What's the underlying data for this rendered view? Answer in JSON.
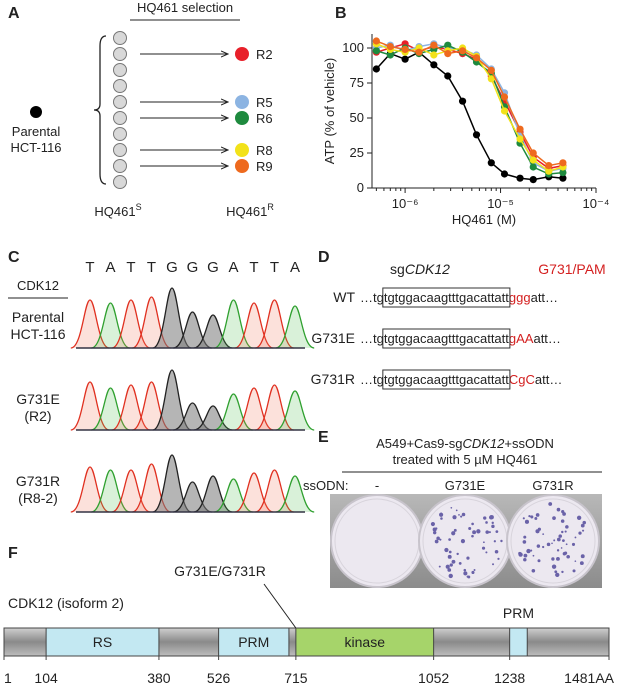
{
  "panel_a": {
    "letter": "A",
    "selection": "HQ461 selection",
    "parental": [
      "Parental",
      "HCT-116"
    ],
    "clones": [
      {
        "label": "R2",
        "row": 2,
        "color": "#e8202a"
      },
      {
        "label": "R5",
        "row": 5,
        "color": "#8cb4e2"
      },
      {
        "label": "R6",
        "row": 6,
        "color": "#1e8a3e"
      },
      {
        "label": "R8",
        "row": 8,
        "color": "#f2e21a"
      },
      {
        "label": "R9",
        "row": 9,
        "color": "#ee6a1e"
      }
    ],
    "sensitive": {
      "text": "HQ461",
      "sup": "S"
    },
    "resistant": {
      "text": "HQ461",
      "sup": "R"
    }
  },
  "chart_data": {
    "type": "scatter",
    "letter": "B",
    "ylabel": "ATP (% of vehicle)",
    "xlabel": "HQ461 (M)",
    "xlog": true,
    "xlim": [
      4.5e-07,
      0.0001
    ],
    "ylim": [
      0,
      110
    ],
    "xticks": [
      {
        "value": 1e-06,
        "label": "10⁻⁶"
      },
      {
        "value": 1e-05,
        "label": "10⁻⁵"
      },
      {
        "value": 0.0001,
        "label": "10⁻⁴"
      }
    ],
    "yticks": [
      0,
      25,
      50,
      75,
      100
    ],
    "x": [
      5e-07,
      7e-07,
      1e-06,
      1.4e-06,
      2e-06,
      2.8e-06,
      4e-06,
      5.6e-06,
      8e-06,
      1.1e-05,
      1.6e-05,
      2.2e-05,
      3.2e-05,
      4.5e-05
    ],
    "series": [
      {
        "color": "#000000",
        "values": [
          85,
          96,
          92,
          97,
          88,
          80,
          62,
          38,
          18,
          10,
          7,
          6,
          8,
          7
        ]
      },
      {
        "color": "#e8202a",
        "values": [
          97,
          100,
          103,
          98,
          101,
          99,
          96,
          92,
          80,
          62,
          40,
          22,
          14,
          16
        ]
      },
      {
        "color": "#8cb4e2",
        "values": [
          100,
          102,
          98,
          101,
          103,
          100,
          99,
          95,
          85,
          68,
          38,
          18,
          12,
          14
        ]
      },
      {
        "color": "#1e8a3e",
        "values": [
          98,
          95,
          100,
          96,
          99,
          102,
          97,
          90,
          82,
          58,
          32,
          15,
          10,
          11
        ]
      },
      {
        "color": "#f2e21a",
        "values": [
          103,
          99,
          97,
          100,
          95,
          98,
          100,
          94,
          78,
          55,
          35,
          20,
          12,
          15
        ]
      },
      {
        "color": "#ee6a1e",
        "values": [
          105,
          101,
          99,
          97,
          102,
          96,
          98,
          93,
          84,
          65,
          42,
          25,
          16,
          18
        ]
      }
    ]
  },
  "panel_c": {
    "letter": "C",
    "gene": "CDK12",
    "bases": [
      "T",
      "A",
      "T",
      "T",
      "G",
      "G",
      "G",
      "A",
      "T",
      "T",
      "A"
    ],
    "rows": [
      [
        "Parental",
        "HCT-116"
      ],
      [
        "G731E",
        "(R2)"
      ],
      [
        "G731R",
        "(R8-2)"
      ]
    ]
  },
  "panel_d": {
    "letter": "D",
    "guide": {
      "prefix": "sg",
      "gene": "CDK12"
    },
    "pam": "G731/PAM",
    "rows": [
      {
        "label": "WT",
        "seq": "…tgtgtggacaagtttgacattatt",
        "mut": "ggg",
        "tail": "att…"
      },
      {
        "label": "G731E",
        "seq": "…tgtgtggacaagtttgacattatt",
        "mut": "gAA",
        "tail": "att…"
      },
      {
        "label": "G731R",
        "seq": "…tgtgtggacaagtttgacattatt",
        "mut": "CgC",
        "tail": "att…"
      }
    ]
  },
  "panel_e": {
    "letter": "E",
    "title": [
      "A549+Cas9-sg",
      "CDK12",
      "+ssODN"
    ],
    "subtitle": "treated with 5 µM HQ461",
    "row_label": "ssODN:",
    "columns": [
      "-",
      "G731E",
      "G731R"
    ]
  },
  "panel_f": {
    "letter": "F",
    "mutation": "G731E/G731R",
    "protein": "CDK12 (isoform 2)",
    "positions": [
      1,
      104,
      380,
      526,
      715,
      1052,
      1238,
      {
        "value": 1481,
        "label": "1481AA"
      }
    ],
    "domains": [
      {
        "label": "RS",
        "start": 104,
        "end": 380
      },
      {
        "label": "PRM",
        "start": 526,
        "end": 698
      },
      {
        "label": "kinase",
        "start": 715,
        "end": 1052
      },
      {
        "label": "PRM",
        "start": 1238,
        "end": 1281
      }
    ]
  }
}
